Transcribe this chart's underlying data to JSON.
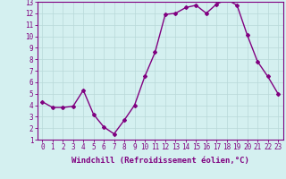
{
  "x": [
    0,
    1,
    2,
    3,
    4,
    5,
    6,
    7,
    8,
    9,
    10,
    11,
    12,
    13,
    14,
    15,
    16,
    17,
    18,
    19,
    20,
    21,
    22,
    23
  ],
  "y": [
    4.3,
    3.8,
    3.8,
    3.9,
    5.3,
    3.2,
    2.1,
    1.5,
    2.7,
    4.0,
    6.5,
    8.6,
    11.9,
    12.0,
    12.5,
    12.7,
    12.0,
    12.8,
    13.2,
    12.7,
    10.1,
    7.8,
    6.5,
    5.0
  ],
  "xlabel": "Windchill (Refroidissement éolien,°C)",
  "xlim": [
    -0.5,
    23.5
  ],
  "ylim": [
    1,
    13
  ],
  "yticks": [
    1,
    2,
    3,
    4,
    5,
    6,
    7,
    8,
    9,
    10,
    11,
    12,
    13
  ],
  "xticks": [
    0,
    1,
    2,
    3,
    4,
    5,
    6,
    7,
    8,
    9,
    10,
    11,
    12,
    13,
    14,
    15,
    16,
    17,
    18,
    19,
    20,
    21,
    22,
    23
  ],
  "line_color": "#800080",
  "marker": "D",
  "marker_size": 2,
  "bg_color": "#d4f0f0",
  "grid_color": "#b8d8d8",
  "label_color": "#800080",
  "tick_color": "#800080",
  "spine_color": "#800080",
  "xlabel_fontsize": 6.5,
  "tick_fontsize": 5.5,
  "linewidth": 1.0
}
